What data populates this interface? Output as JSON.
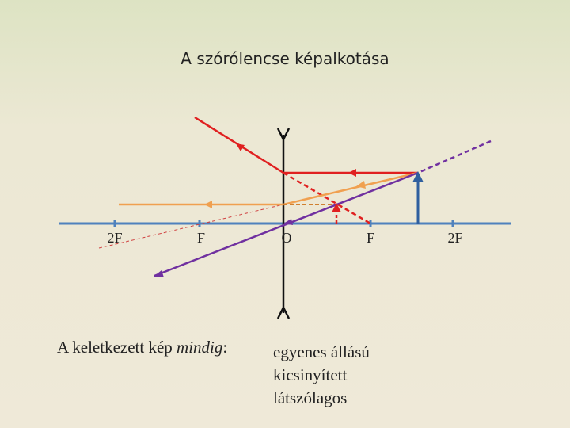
{
  "title": "A szórólencse képalkotása",
  "axis_labels": [
    "2F",
    "F",
    "O",
    "F",
    "2F"
  ],
  "conclusion": {
    "prefix": "A keletkezett kép",
    "emphasis": "mindig",
    "suffix": ":"
  },
  "properties": [
    "egyenes állású",
    "kicsinyített",
    "látszólagos"
  ]
}
